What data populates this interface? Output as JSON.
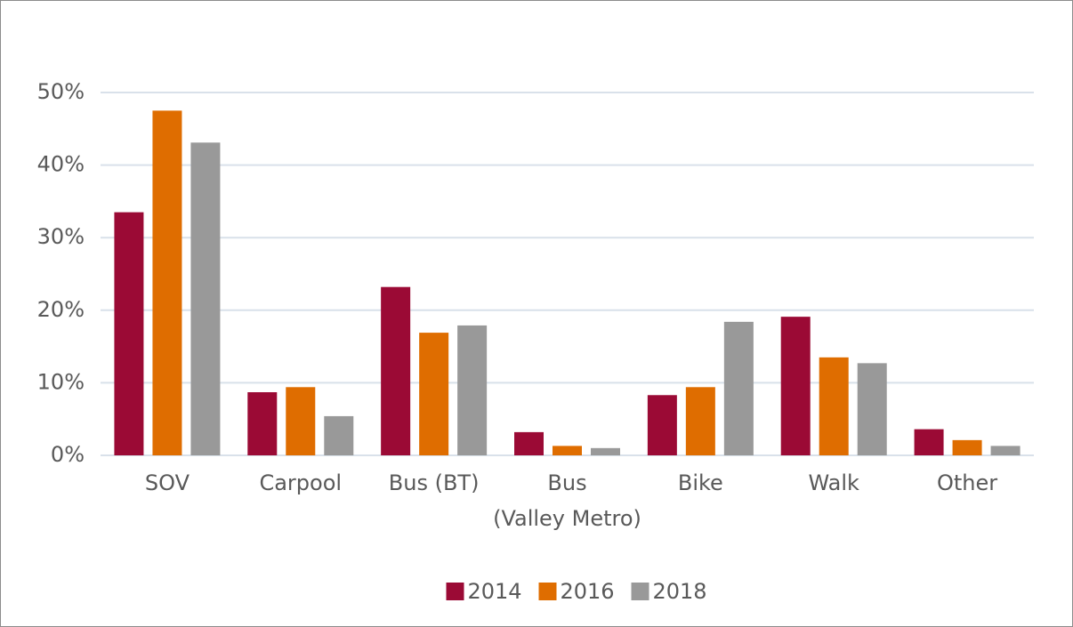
{
  "chart_data": {
    "type": "bar",
    "categories": [
      "SOV",
      "Carpool",
      "Bus (BT)",
      "Bus\n(Valley Metro)",
      "Bike",
      "Walk",
      "Other"
    ],
    "series": [
      {
        "name": "2014",
        "color": "#9b0a35",
        "values": [
          33.5,
          8.7,
          23.2,
          3.2,
          8.3,
          19.1,
          3.6
        ]
      },
      {
        "name": "2016",
        "color": "#df6d00",
        "values": [
          47.5,
          9.4,
          16.9,
          1.3,
          9.4,
          13.5,
          2.1
        ]
      },
      {
        "name": "2018",
        "color": "#999999",
        "values": [
          43.1,
          5.4,
          17.9,
          1.0,
          18.4,
          12.7,
          1.3
        ]
      }
    ],
    "ylim": [
      0,
      50
    ],
    "yticks": [
      {
        "value": 0,
        "label": "0%"
      },
      {
        "value": 10,
        "label": "10%"
      },
      {
        "value": 20,
        "label": "20%"
      },
      {
        "value": 30,
        "label": "30%"
      },
      {
        "value": 40,
        "label": "40%"
      },
      {
        "value": 50,
        "label": "50%"
      }
    ],
    "grid": true,
    "legend": "bottom"
  }
}
